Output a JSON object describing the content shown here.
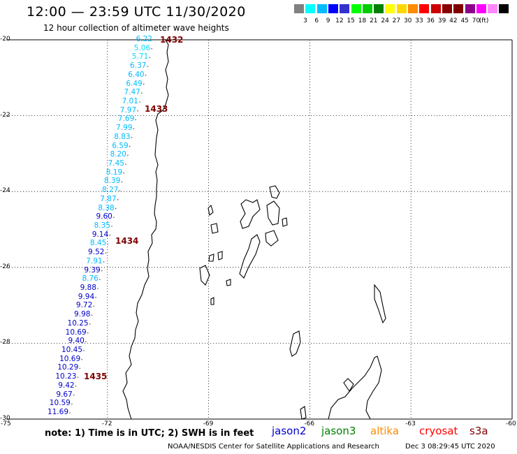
{
  "header": {
    "title": "12:00 — 23:59 UTC 11/30/2020",
    "subtitle": "12 hour collection of altimeter wave heights"
  },
  "colorbar": {
    "colors": [
      "#808080",
      "#00ffff",
      "#00bbff",
      "#0000ff",
      "#3333cc",
      "#00ff00",
      "#00cc00",
      "#008000",
      "#ffff00",
      "#ffd700",
      "#ff8c00",
      "#ff0000",
      "#cc0000",
      "#8b0000",
      "#800000",
      "#8b008b",
      "#ff00ff",
      "#ff88ff",
      "#000000"
    ],
    "labels": [
      "3",
      "6",
      "9",
      "12",
      "15",
      "18",
      "21",
      "24",
      "27",
      "30",
      "33",
      "36",
      "39",
      "42",
      "45",
      "70"
    ],
    "unit": "(ft)"
  },
  "axes": {
    "lat_labels": [
      "-20",
      "-22",
      "-24",
      "-26",
      "-28",
      "-30"
    ],
    "lon_labels": [
      "-75",
      "-72",
      "-69",
      "-66",
      "-63",
      "-60"
    ]
  },
  "track": {
    "wave_heights": [
      {
        "v": "6.22",
        "c": "#00bbff"
      },
      {
        "v": "5.06",
        "c": "#00ddff"
      },
      {
        "v": "5.71",
        "c": "#00ddff"
      },
      {
        "v": "6.37",
        "c": "#00bbff"
      },
      {
        "v": "6.40",
        "c": "#00bbff"
      },
      {
        "v": "6.49",
        "c": "#00bbff"
      },
      {
        "v": "7.47",
        "c": "#00bbff"
      },
      {
        "v": "7.01",
        "c": "#00bbff"
      },
      {
        "v": "7.97",
        "c": "#00bbff"
      },
      {
        "v": "7.69",
        "c": "#00bbff"
      },
      {
        "v": "7.99",
        "c": "#00bbff"
      },
      {
        "v": "8.83",
        "c": "#00bbff"
      },
      {
        "v": "6.59",
        "c": "#00bbff"
      },
      {
        "v": "8.20",
        "c": "#00bbff"
      },
      {
        "v": "7.45",
        "c": "#00bbff"
      },
      {
        "v": "8.19",
        "c": "#00bbff"
      },
      {
        "v": "8.39",
        "c": "#00bbff"
      },
      {
        "v": "8.27",
        "c": "#00bbff"
      },
      {
        "v": "7.87",
        "c": "#00bbff"
      },
      {
        "v": "8.38",
        "c": "#00bbff"
      },
      {
        "v": "9.60",
        "c": "#0000cc"
      },
      {
        "v": "8.35",
        "c": "#00bbff"
      },
      {
        "v": "9.14",
        "c": "#0000cc"
      },
      {
        "v": "8.45",
        "c": "#00bbff"
      },
      {
        "v": "9.52",
        "c": "#0000cc"
      },
      {
        "v": "7.91",
        "c": "#00bbff"
      },
      {
        "v": "9.39",
        "c": "#0000cc"
      },
      {
        "v": "8.76",
        "c": "#00bbff"
      },
      {
        "v": "9.88",
        "c": "#0000cc"
      },
      {
        "v": "9.94",
        "c": "#0000cc"
      },
      {
        "v": "9.72",
        "c": "#0000cc"
      },
      {
        "v": "9.98",
        "c": "#0000cc"
      },
      {
        "v": "10.25",
        "c": "#0000cc"
      },
      {
        "v": "10.69",
        "c": "#0000cc"
      },
      {
        "v": "9.40",
        "c": "#0000cc"
      },
      {
        "v": "10.45",
        "c": "#0000cc"
      },
      {
        "v": "10.69",
        "c": "#0000cc"
      },
      {
        "v": "10.29",
        "c": "#0000cc"
      },
      {
        "v": "10.23",
        "c": "#0000cc"
      },
      {
        "v": "9.42",
        "c": "#0000cc"
      },
      {
        "v": "9.67",
        "c": "#0000cc"
      },
      {
        "v": "10.59",
        "c": "#0000cc"
      },
      {
        "v": "11.69",
        "c": "#0000cc"
      }
    ],
    "time_marks": [
      "1432",
      "1433",
      "1434",
      "1435"
    ]
  },
  "footer": {
    "note": "note:  1) Time is in UTC;  2) SWH is in feet",
    "satellites": [
      {
        "name": "jason2",
        "color": "#0000cc"
      },
      {
        "name": "jason3",
        "color": "#008000"
      },
      {
        "name": "altika",
        "color": "#ff8c00"
      },
      {
        "name": "cryosat",
        "color": "#ff0000"
      },
      {
        "name": "s3a",
        "color": "#800000"
      }
    ],
    "credit": "NOAA/NESDIS Center for Satellite Applications and Research",
    "timestamp": "Dec  3 08:29:45 UTC 2020"
  }
}
